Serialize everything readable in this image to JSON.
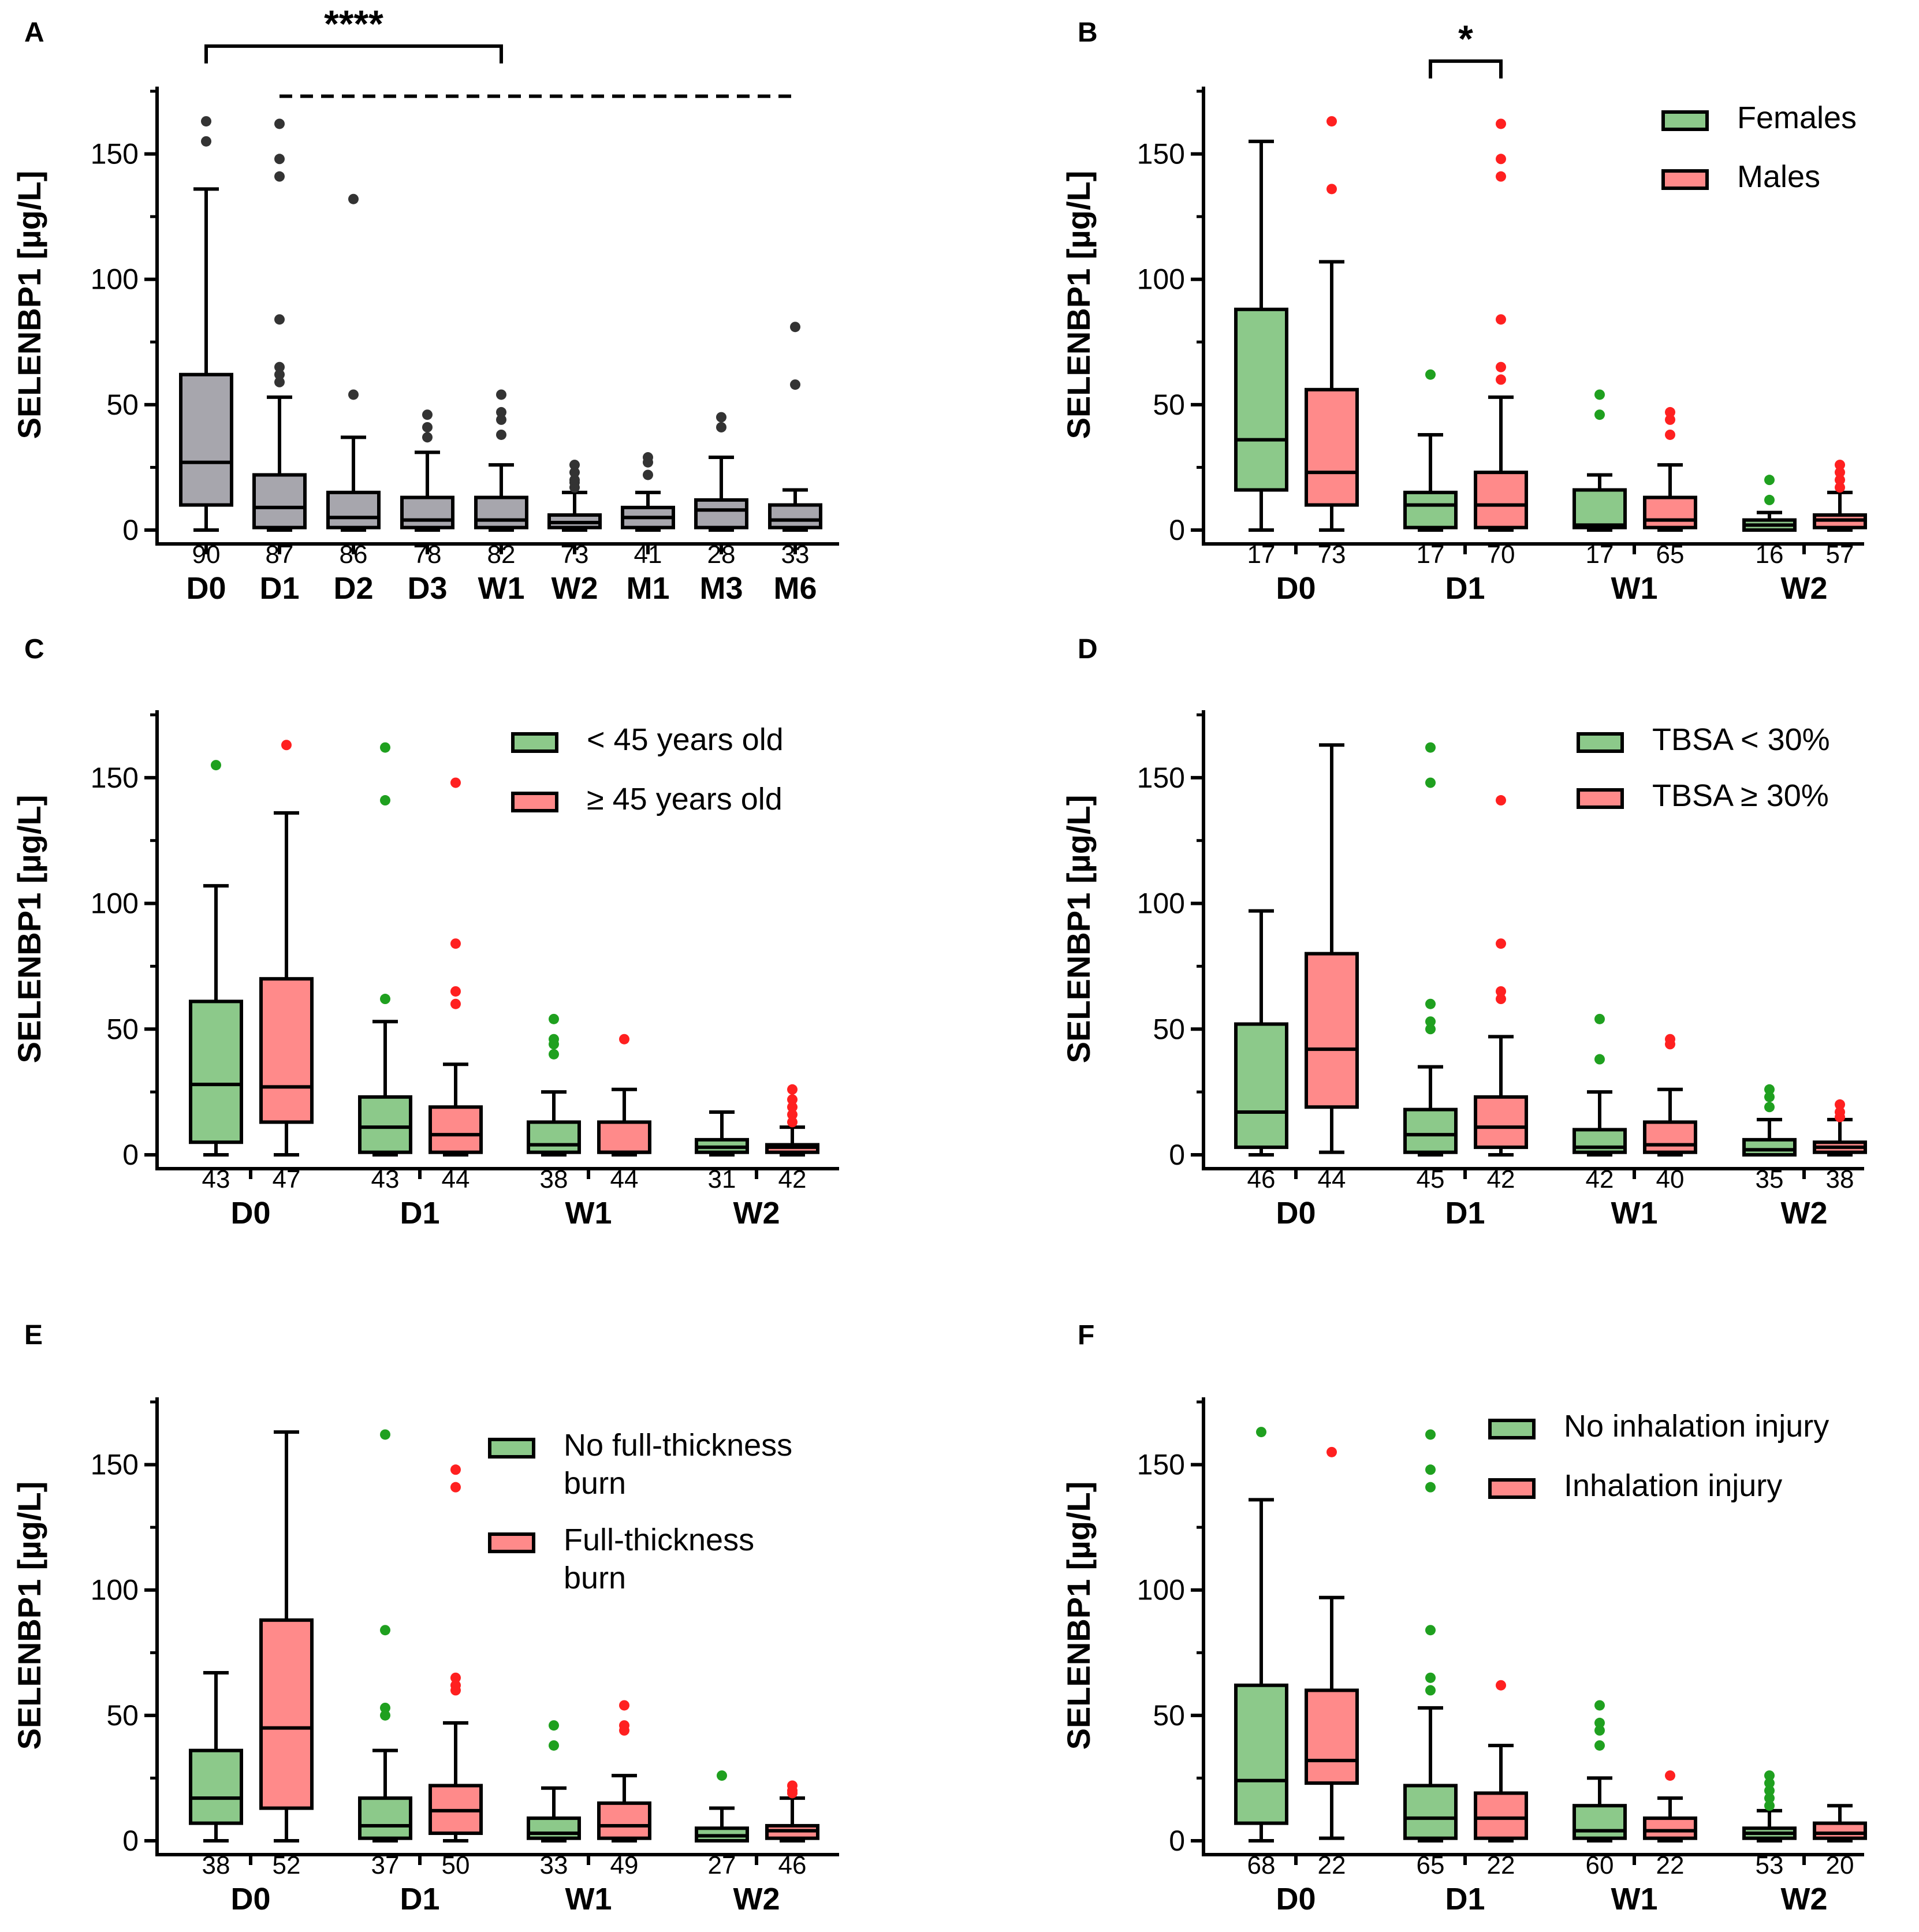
{
  "figure": {
    "ylabel": "SELENBP1 [µg/L]",
    "ylim": [
      0,
      175
    ],
    "yticks": [
      0,
      50,
      100,
      150
    ],
    "colors": {
      "gray": "#a7a6ad",
      "gray_outlier": "#333333",
      "green": "#8cc98a",
      "green_outlier": "#1fa01f",
      "red": "#ff8a8a",
      "red_outlier": "#ff2020",
      "axis": "#000000"
    }
  },
  "chart_data": [
    {
      "panel": "A",
      "type": "box",
      "legend": [],
      "categories": [
        "D0",
        "D1",
        "D2",
        "D3",
        "W1",
        "W2",
        "M1",
        "M3",
        "M6"
      ],
      "significance": [
        {
          "from": "D0",
          "to": "W1",
          "label": "****",
          "style": "solid",
          "level": 193
        },
        {
          "from": "D1",
          "to": "M6",
          "label": "",
          "style": "dashed",
          "level": 173
        }
      ],
      "groups": [
        {
          "series": 0,
          "boxes": [
            {
              "cat": 0,
              "n": "90",
              "min": 0,
              "q1": 10,
              "median": 27,
              "q3": 62,
              "max": 136,
              "outliers": [
                155,
                163
              ]
            },
            {
              "cat": 1,
              "n": "87",
              "min": 0,
              "q1": 1,
              "median": 9,
              "q3": 22,
              "max": 53,
              "outliers": [
                59,
                62,
                65,
                84,
                141,
                148,
                162
              ]
            },
            {
              "cat": 2,
              "n": "86",
              "min": 0,
              "q1": 1,
              "median": 5,
              "q3": 15,
              "max": 37,
              "outliers": [
                54,
                132
              ]
            },
            {
              "cat": 3,
              "n": "78",
              "min": 0,
              "q1": 1,
              "median": 4,
              "q3": 13,
              "max": 31,
              "outliers": [
                37,
                41,
                46
              ]
            },
            {
              "cat": 4,
              "n": "82",
              "min": 0,
              "q1": 1,
              "median": 4,
              "q3": 13,
              "max": 26,
              "outliers": [
                38,
                44,
                47,
                54
              ]
            },
            {
              "cat": 5,
              "n": "73",
              "min": 0,
              "q1": 1,
              "median": 3,
              "q3": 6,
              "max": 15,
              "outliers": [
                17,
                19,
                20,
                23,
                26
              ]
            },
            {
              "cat": 6,
              "n": "41",
              "min": 0,
              "q1": 1,
              "median": 5,
              "q3": 9,
              "max": 15,
              "outliers": [
                22,
                27,
                29
              ]
            },
            {
              "cat": 7,
              "n": "28",
              "min": 0,
              "q1": 1,
              "median": 8,
              "q3": 12,
              "max": 29,
              "outliers": [
                41,
                45
              ]
            },
            {
              "cat": 8,
              "n": "33",
              "min": 0,
              "q1": 1,
              "median": 4,
              "q3": 10,
              "max": 16,
              "outliers": [
                58,
                81
              ]
            }
          ]
        }
      ]
    },
    {
      "panel": "B",
      "type": "box",
      "categories": [
        "D0",
        "D1",
        "W1",
        "W2"
      ],
      "legend": [
        "Females",
        "Males"
      ],
      "significance": [
        {
          "from_group": 2,
          "to_group": 3,
          "label": "*",
          "style": "bracket",
          "level": 187
        }
      ],
      "groups": [
        {
          "series": 0,
          "cat": 0,
          "n": "17",
          "min": 0,
          "q1": 16,
          "median": 36,
          "q3": 88,
          "max": 155,
          "outliers": []
        },
        {
          "series": 1,
          "cat": 0,
          "n": "73",
          "min": 0,
          "q1": 10,
          "median": 23,
          "q3": 56,
          "max": 107,
          "outliers": [
            136,
            163
          ]
        },
        {
          "series": 0,
          "cat": 1,
          "n": "17",
          "min": 0,
          "q1": 1,
          "median": 10,
          "q3": 15,
          "max": 38,
          "outliers": [
            62
          ]
        },
        {
          "series": 1,
          "cat": 1,
          "n": "70",
          "min": 0,
          "q1": 1,
          "median": 10,
          "q3": 23,
          "max": 53,
          "outliers": [
            60,
            65,
            84,
            141,
            148,
            162
          ]
        },
        {
          "series": 0,
          "cat": 2,
          "n": "17",
          "min": 0,
          "q1": 1,
          "median": 2,
          "q3": 16,
          "max": 22,
          "outliers": [
            46,
            54
          ]
        },
        {
          "series": 1,
          "cat": 2,
          "n": "65",
          "min": 0,
          "q1": 1,
          "median": 4,
          "q3": 13,
          "max": 26,
          "outliers": [
            38,
            44,
            47
          ]
        },
        {
          "series": 0,
          "cat": 3,
          "n": "16",
          "min": 0,
          "q1": 0,
          "median": 2,
          "q3": 4,
          "max": 7,
          "outliers": [
            12,
            20
          ]
        },
        {
          "series": 1,
          "cat": 3,
          "n": "57",
          "min": 0,
          "q1": 1,
          "median": 4,
          "q3": 6,
          "max": 15,
          "outliers": [
            17,
            20,
            23,
            26
          ]
        }
      ]
    },
    {
      "panel": "C",
      "type": "box",
      "categories": [
        "D0",
        "D1",
        "W1",
        "W2"
      ],
      "legend": [
        "< 45 years old",
        "≥ 45 years old"
      ],
      "significance": [],
      "groups": [
        {
          "series": 0,
          "cat": 0,
          "n": "43",
          "min": 0,
          "q1": 5,
          "median": 28,
          "q3": 61,
          "max": 107,
          "outliers": [
            155
          ]
        },
        {
          "series": 1,
          "cat": 0,
          "n": "47",
          "min": 0,
          "q1": 13,
          "median": 27,
          "q3": 70,
          "max": 136,
          "outliers": [
            163
          ]
        },
        {
          "series": 0,
          "cat": 1,
          "n": "43",
          "min": 0,
          "q1": 1,
          "median": 11,
          "q3": 23,
          "max": 53,
          "outliers": [
            62,
            141,
            162
          ]
        },
        {
          "series": 1,
          "cat": 1,
          "n": "44",
          "min": 0,
          "q1": 1,
          "median": 8,
          "q3": 19,
          "max": 36,
          "outliers": [
            60,
            65,
            84,
            148
          ]
        },
        {
          "series": 0,
          "cat": 2,
          "n": "38",
          "min": 0,
          "q1": 1,
          "median": 4,
          "q3": 13,
          "max": 25,
          "outliers": [
            40,
            44,
            46,
            54
          ]
        },
        {
          "series": 1,
          "cat": 2,
          "n": "44",
          "min": 0,
          "q1": 1,
          "median": 1,
          "q3": 13,
          "max": 26,
          "outliers": [
            46
          ]
        },
        {
          "series": 0,
          "cat": 3,
          "n": "31",
          "min": 0,
          "q1": 1,
          "median": 3,
          "q3": 6,
          "max": 17,
          "outliers": []
        },
        {
          "series": 1,
          "cat": 3,
          "n": "42",
          "min": 0,
          "q1": 1,
          "median": 3,
          "q3": 4,
          "max": 11,
          "outliers": [
            13,
            16,
            19,
            22,
            26
          ]
        }
      ]
    },
    {
      "panel": "D",
      "type": "box",
      "categories": [
        "D0",
        "D1",
        "W1",
        "W2"
      ],
      "legend": [
        "TBSA < 30%",
        "TBSA ≥ 30%"
      ],
      "significance": [],
      "groups": [
        {
          "series": 0,
          "cat": 0,
          "n": "46",
          "min": 0,
          "q1": 3,
          "median": 17,
          "q3": 52,
          "max": 97,
          "outliers": []
        },
        {
          "series": 1,
          "cat": 0,
          "n": "44",
          "min": 1,
          "q1": 19,
          "median": 42,
          "q3": 80,
          "max": 163,
          "outliers": []
        },
        {
          "series": 0,
          "cat": 1,
          "n": "45",
          "min": 0,
          "q1": 1,
          "median": 8,
          "q3": 18,
          "max": 35,
          "outliers": [
            50,
            53,
            60,
            148,
            162
          ]
        },
        {
          "series": 1,
          "cat": 1,
          "n": "42",
          "min": 0,
          "q1": 3,
          "median": 11,
          "q3": 23,
          "max": 47,
          "outliers": [
            62,
            65,
            84,
            141
          ]
        },
        {
          "series": 0,
          "cat": 2,
          "n": "42",
          "min": 0,
          "q1": 1,
          "median": 3,
          "q3": 10,
          "max": 25,
          "outliers": [
            38,
            54
          ]
        },
        {
          "series": 1,
          "cat": 2,
          "n": "40",
          "min": 0,
          "q1": 1,
          "median": 4,
          "q3": 13,
          "max": 26,
          "outliers": [
            44,
            46
          ]
        },
        {
          "series": 0,
          "cat": 3,
          "n": "35",
          "min": 0,
          "q1": 0,
          "median": 2,
          "q3": 6,
          "max": 14,
          "outliers": [
            19,
            23,
            26
          ]
        },
        {
          "series": 1,
          "cat": 3,
          "n": "38",
          "min": 0,
          "q1": 1,
          "median": 3,
          "q3": 5,
          "max": 14,
          "outliers": [
            15,
            17,
            20
          ]
        }
      ]
    },
    {
      "panel": "E",
      "type": "box",
      "categories": [
        "D0",
        "D1",
        "W1",
        "W2"
      ],
      "legend": [
        "No full-thickness\nburn",
        "Full-thickness\nburn"
      ],
      "significance": [],
      "groups": [
        {
          "series": 0,
          "cat": 0,
          "n": "38",
          "min": 0,
          "q1": 7,
          "median": 17,
          "q3": 36,
          "max": 67,
          "outliers": []
        },
        {
          "series": 1,
          "cat": 0,
          "n": "52",
          "min": 0,
          "q1": 13,
          "median": 45,
          "q3": 88,
          "max": 163,
          "outliers": []
        },
        {
          "series": 0,
          "cat": 1,
          "n": "37",
          "min": 0,
          "q1": 1,
          "median": 6,
          "q3": 17,
          "max": 36,
          "outliers": [
            50,
            53,
            84,
            162
          ]
        },
        {
          "series": 1,
          "cat": 1,
          "n": "50",
          "min": 0,
          "q1": 3,
          "median": 12,
          "q3": 22,
          "max": 47,
          "outliers": [
            60,
            62,
            65,
            141,
            148
          ]
        },
        {
          "series": 0,
          "cat": 2,
          "n": "33",
          "min": 0,
          "q1": 1,
          "median": 3,
          "q3": 9,
          "max": 21,
          "outliers": [
            38,
            46
          ]
        },
        {
          "series": 1,
          "cat": 2,
          "n": "49",
          "min": 0,
          "q1": 1,
          "median": 6,
          "q3": 15,
          "max": 26,
          "outliers": [
            44,
            46,
            54
          ]
        },
        {
          "series": 0,
          "cat": 3,
          "n": "27",
          "min": 0,
          "q1": 0,
          "median": 2,
          "q3": 5,
          "max": 13,
          "outliers": [
            26
          ]
        },
        {
          "series": 1,
          "cat": 3,
          "n": "46",
          "min": 0,
          "q1": 1,
          "median": 4,
          "q3": 6,
          "max": 17,
          "outliers": [
            19,
            20,
            22
          ]
        }
      ]
    },
    {
      "panel": "F",
      "type": "box",
      "categories": [
        "D0",
        "D1",
        "W1",
        "W2"
      ],
      "legend": [
        "No inhalation injury",
        "Inhalation injury"
      ],
      "significance": [],
      "groups": [
        {
          "series": 0,
          "cat": 0,
          "n": "68",
          "min": 0,
          "q1": 7,
          "median": 24,
          "q3": 62,
          "max": 136,
          "outliers": [
            163
          ]
        },
        {
          "series": 1,
          "cat": 0,
          "n": "22",
          "min": 1,
          "q1": 23,
          "median": 32,
          "q3": 60,
          "max": 97,
          "outliers": [
            155
          ]
        },
        {
          "series": 0,
          "cat": 1,
          "n": "65",
          "min": 0,
          "q1": 1,
          "median": 9,
          "q3": 22,
          "max": 53,
          "outliers": [
            60,
            65,
            84,
            141,
            148,
            162
          ]
        },
        {
          "series": 1,
          "cat": 1,
          "n": "22",
          "min": 0,
          "q1": 1,
          "median": 9,
          "q3": 19,
          "max": 38,
          "outliers": [
            62
          ]
        },
        {
          "series": 0,
          "cat": 2,
          "n": "60",
          "min": 0,
          "q1": 1,
          "median": 4,
          "q3": 14,
          "max": 25,
          "outliers": [
            38,
            44,
            47,
            54
          ]
        },
        {
          "series": 1,
          "cat": 2,
          "n": "22",
          "min": 0,
          "q1": 1,
          "median": 4,
          "q3": 9,
          "max": 17,
          "outliers": [
            26
          ]
        },
        {
          "series": 0,
          "cat": 3,
          "n": "53",
          "min": 0,
          "q1": 1,
          "median": 3,
          "q3": 5,
          "max": 12,
          "outliers": [
            14,
            17,
            20,
            23,
            26
          ]
        },
        {
          "series": 1,
          "cat": 3,
          "n": "20",
          "min": 0,
          "q1": 1,
          "median": 3,
          "q3": 7,
          "max": 14,
          "outliers": []
        }
      ]
    }
  ]
}
